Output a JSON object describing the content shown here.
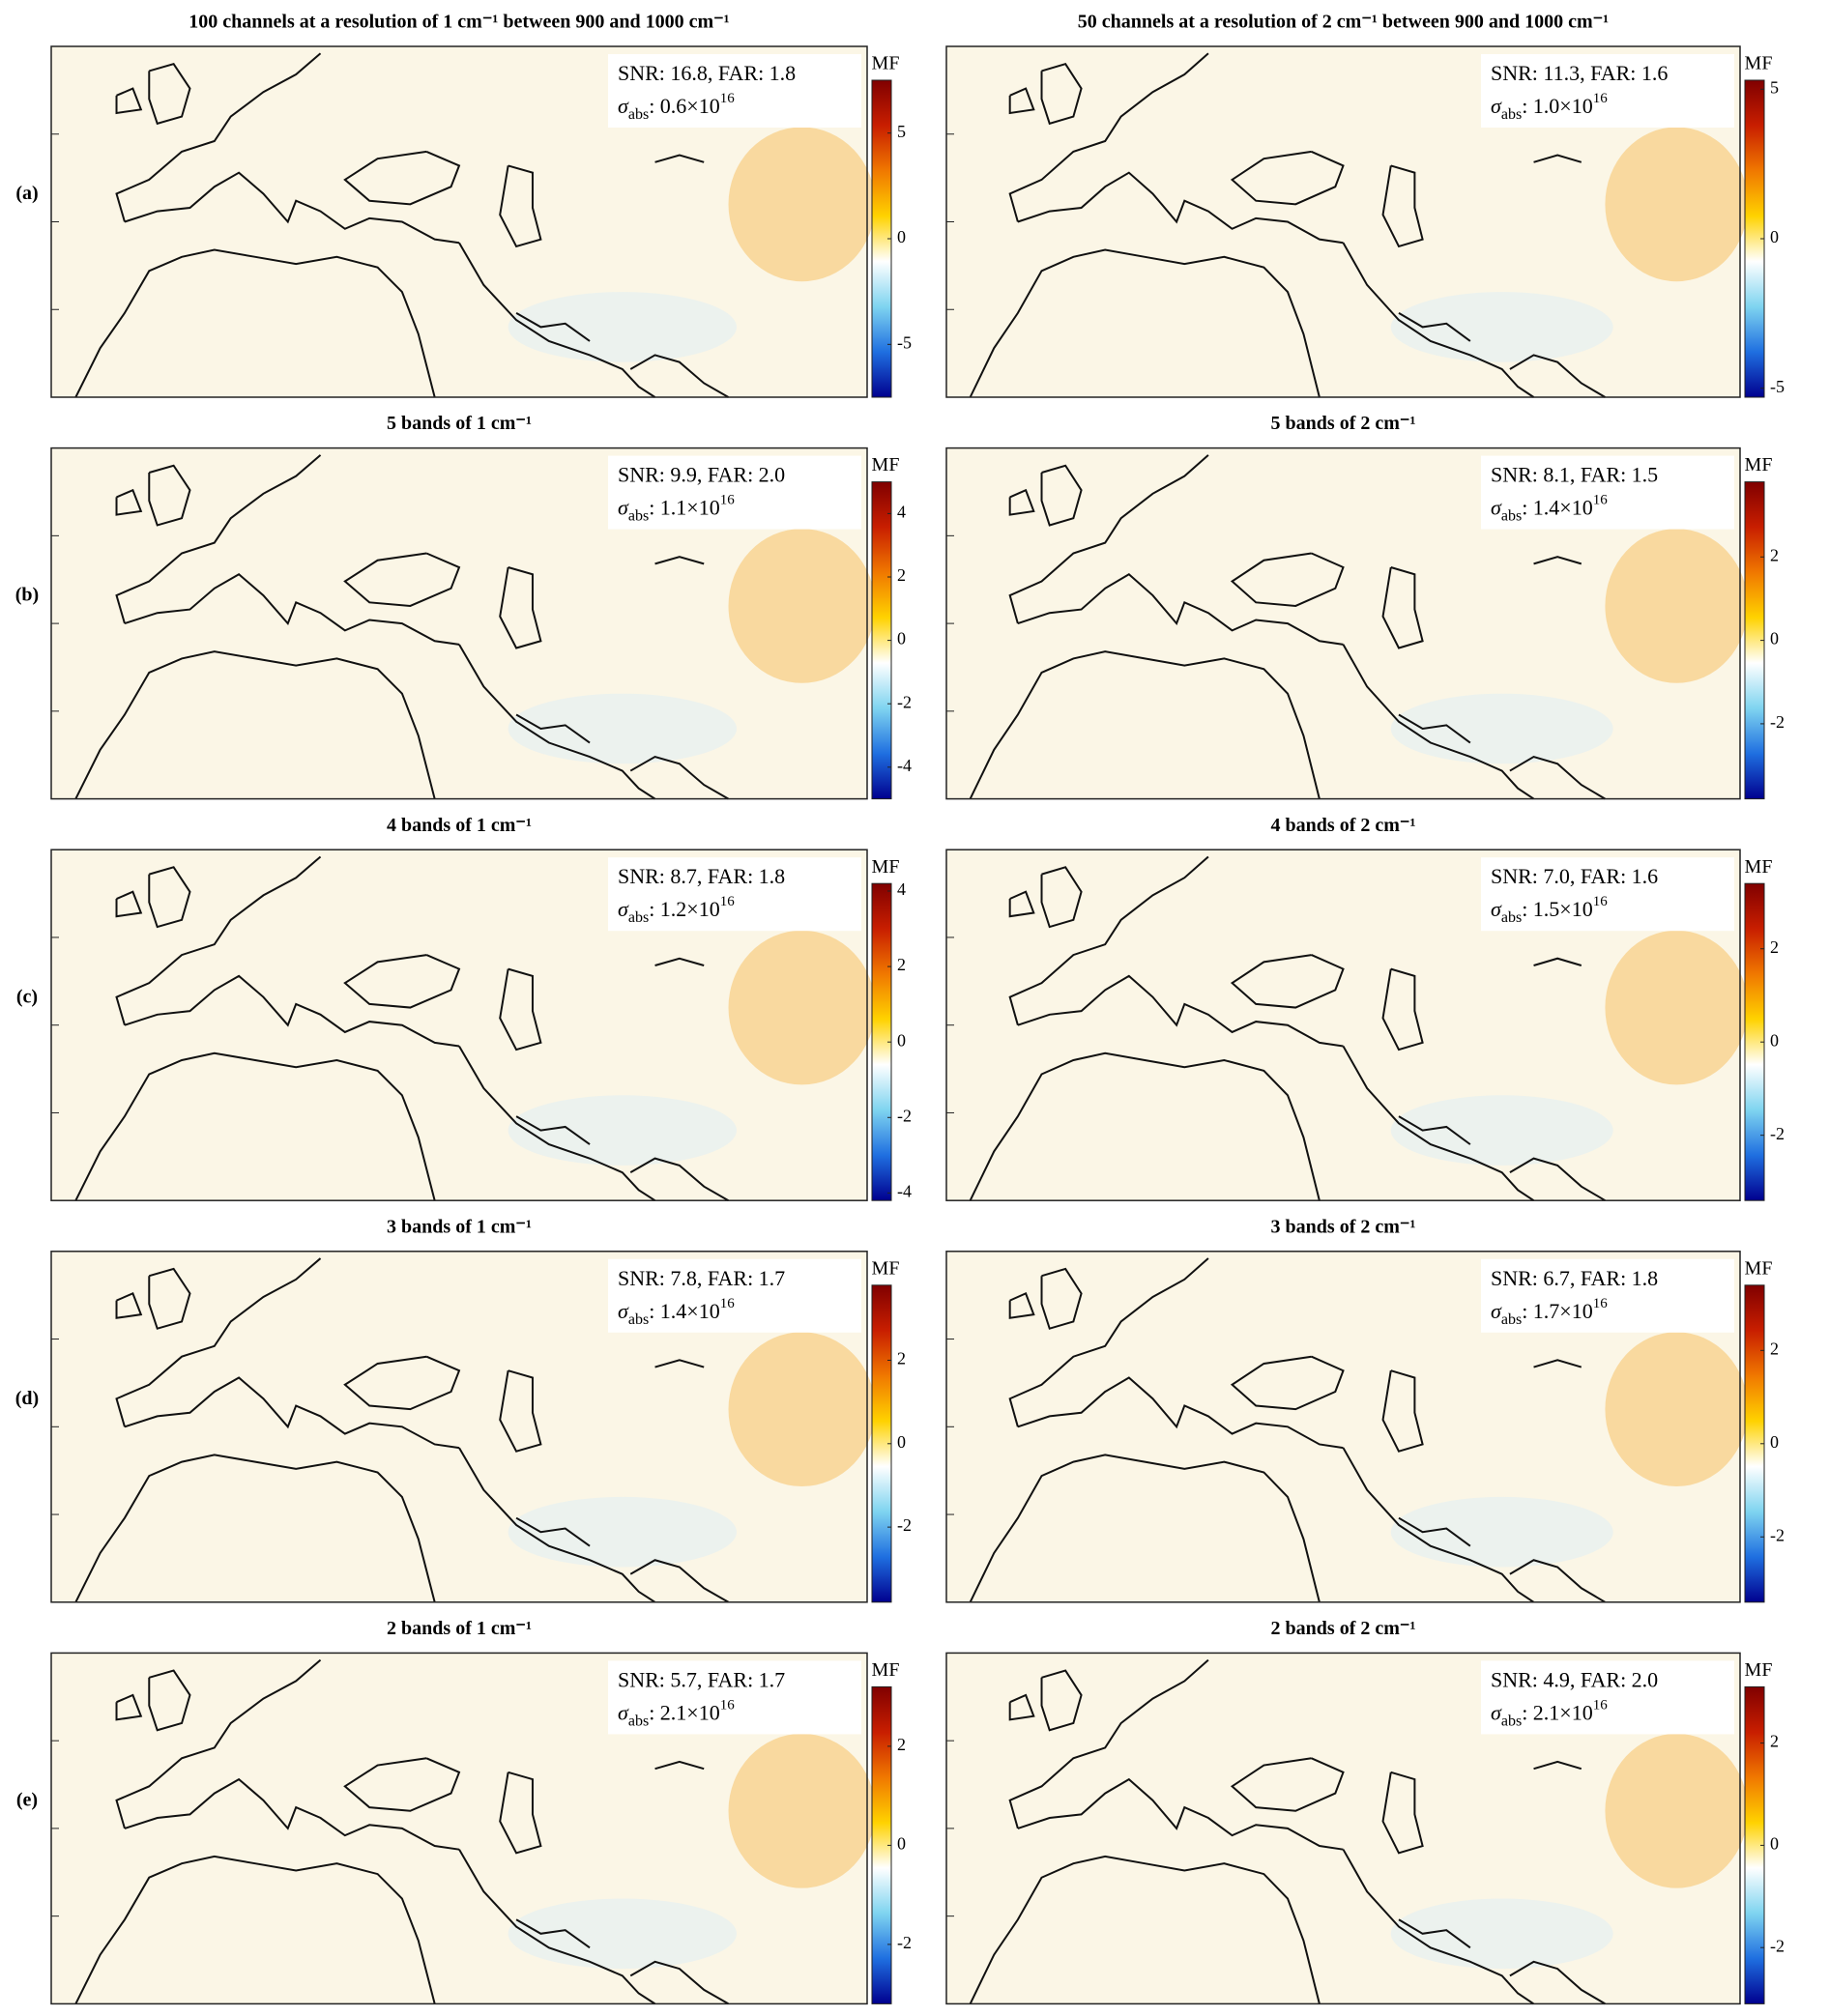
{
  "chart_data": [
    {
      "type": "map",
      "title": "100 channels at a resolution of 1 cm⁻¹ between 900 and 1000 cm⁻¹",
      "row_label": "(a)",
      "annotation": "SNR: 16.8, FAR: 1.8",
      "sigma": {
        "symbol": "σ",
        "sub": "abs",
        "text": ": 0.6×10",
        "sup": "16"
      },
      "colorbar": {
        "label": "MF",
        "lim": [
          -7.5,
          7.5
        ],
        "ticks": [
          -5,
          0,
          5
        ],
        "colors": [
          "#00008f",
          "#1f6fe0",
          "#7fd4f0",
          "#ffffff",
          "#ffd200",
          "#f07800",
          "#c81e00",
          "#800000"
        ]
      }
    },
    {
      "type": "map",
      "title": "50 channels at a resolution of 2 cm⁻¹ between 900 and 1000 cm⁻¹",
      "annotation": "SNR: 11.3, FAR: 1.6",
      "sigma": {
        "symbol": "σ",
        "sub": "abs",
        "text": ": 1.0×10",
        "sup": "16"
      },
      "colorbar": {
        "label": "MF",
        "lim": [
          -5.3,
          5.3
        ],
        "ticks": [
          -5,
          0,
          5
        ],
        "colors": [
          "#00008f",
          "#1f6fe0",
          "#7fd4f0",
          "#ffffff",
          "#ffd200",
          "#f07800",
          "#c81e00",
          "#800000"
        ]
      }
    },
    {
      "type": "map",
      "title": "5 bands of 1 cm⁻¹",
      "row_label": "(b)",
      "annotation": "SNR: 9.9, FAR: 2.0",
      "sigma": {
        "symbol": "σ",
        "sub": "abs",
        "text": ": 1.1×10",
        "sup": "16"
      },
      "colorbar": {
        "label": "MF",
        "lim": [
          -5,
          5
        ],
        "ticks": [
          -4,
          -2,
          0,
          2,
          4
        ],
        "colors": [
          "#00008f",
          "#1f6fe0",
          "#7fd4f0",
          "#ffffff",
          "#ffd200",
          "#f07800",
          "#c81e00",
          "#800000"
        ]
      }
    },
    {
      "type": "map",
      "title": "5 bands of 2 cm⁻¹",
      "annotation": "SNR: 8.1, FAR: 1.5",
      "sigma": {
        "symbol": "σ",
        "sub": "abs",
        "text": ": 1.4×10",
        "sup": "16"
      },
      "colorbar": {
        "label": "MF",
        "lim": [
          -3.8,
          3.8
        ],
        "ticks": [
          -2,
          0,
          2
        ],
        "colors": [
          "#00008f",
          "#1f6fe0",
          "#7fd4f0",
          "#ffffff",
          "#ffd200",
          "#f07800",
          "#c81e00",
          "#800000"
        ]
      }
    },
    {
      "type": "map",
      "title": "4 bands of 1 cm⁻¹",
      "row_label": "(c)",
      "annotation": "SNR: 8.7, FAR: 1.8",
      "sigma": {
        "symbol": "σ",
        "sub": "abs",
        "text": ": 1.2×10",
        "sup": "16"
      },
      "colorbar": {
        "label": "MF",
        "lim": [
          -4.2,
          4.2
        ],
        "ticks": [
          -4,
          -2,
          0,
          2,
          4
        ],
        "colors": [
          "#00008f",
          "#1f6fe0",
          "#7fd4f0",
          "#ffffff",
          "#ffd200",
          "#f07800",
          "#c81e00",
          "#800000"
        ]
      }
    },
    {
      "type": "map",
      "title": "4 bands of 2 cm⁻¹",
      "annotation": "SNR: 7.0, FAR: 1.6",
      "sigma": {
        "symbol": "σ",
        "sub": "abs",
        "text": ": 1.5×10",
        "sup": "16"
      },
      "colorbar": {
        "label": "MF",
        "lim": [
          -3.4,
          3.4
        ],
        "ticks": [
          -2,
          0,
          2
        ],
        "colors": [
          "#00008f",
          "#1f6fe0",
          "#7fd4f0",
          "#ffffff",
          "#ffd200",
          "#f07800",
          "#c81e00",
          "#800000"
        ]
      }
    },
    {
      "type": "map",
      "title": "3 bands of 1 cm⁻¹",
      "row_label": "(d)",
      "annotation": "SNR: 7.8, FAR: 1.7",
      "sigma": {
        "symbol": "σ",
        "sub": "abs",
        "text": ": 1.4×10",
        "sup": "16"
      },
      "colorbar": {
        "label": "MF",
        "lim": [
          -3.8,
          3.8
        ],
        "ticks": [
          -2,
          0,
          2
        ],
        "colors": [
          "#00008f",
          "#1f6fe0",
          "#7fd4f0",
          "#ffffff",
          "#ffd200",
          "#f07800",
          "#c81e00",
          "#800000"
        ]
      }
    },
    {
      "type": "map",
      "title": "3 bands of 2 cm⁻¹",
      "annotation": "SNR: 6.7, FAR: 1.8",
      "sigma": {
        "symbol": "σ",
        "sub": "abs",
        "text": ": 1.7×10",
        "sup": "16"
      },
      "colorbar": {
        "label": "MF",
        "lim": [
          -3.4,
          3.4
        ],
        "ticks": [
          -2,
          0,
          2
        ],
        "colors": [
          "#00008f",
          "#1f6fe0",
          "#7fd4f0",
          "#ffffff",
          "#ffd200",
          "#f07800",
          "#c81e00",
          "#800000"
        ]
      }
    },
    {
      "type": "map",
      "title": "2 bands of 1 cm⁻¹",
      "row_label": "(e)",
      "annotation": "SNR: 5.7, FAR: 1.7",
      "sigma": {
        "symbol": "σ",
        "sub": "abs",
        "text": ": 2.1×10",
        "sup": "16"
      },
      "colorbar": {
        "label": "MF",
        "lim": [
          -3.2,
          3.2
        ],
        "ticks": [
          -2,
          0,
          2
        ],
        "colors": [
          "#00008f",
          "#1f6fe0",
          "#7fd4f0",
          "#ffffff",
          "#ffd200",
          "#f07800",
          "#c81e00",
          "#800000"
        ]
      }
    },
    {
      "type": "map",
      "title": "2 bands of 2 cm⁻¹",
      "annotation": "SNR: 4.9, FAR: 2.0",
      "sigma": {
        "symbol": "σ",
        "sub": "abs",
        "text": ": 2.1×10",
        "sup": "16"
      },
      "colorbar": {
        "label": "MF",
        "lim": [
          -3.1,
          3.1
        ],
        "ticks": [
          -2,
          0,
          2
        ],
        "colors": [
          "#00008f",
          "#1f6fe0",
          "#7fd4f0",
          "#ffffff",
          "#ffd200",
          "#f07800",
          "#c81e00",
          "#800000"
        ]
      }
    }
  ]
}
